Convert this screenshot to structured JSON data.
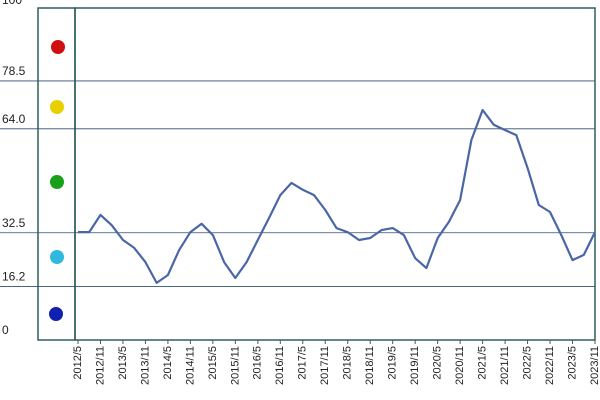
{
  "chart_data": {
    "type": "line",
    "categories": [
      "2012/5",
      null,
      "2012/11",
      null,
      "2013/5",
      null,
      "2013/11",
      null,
      "2014/5",
      null,
      "2014/11",
      null,
      "2015/5",
      null,
      "2015/11",
      null,
      "2016/5",
      null,
      "2016/11",
      null,
      "2017/5",
      null,
      "2017/11",
      null,
      "2018/5",
      null,
      "2018/11",
      null,
      "2019/5",
      null,
      "2019/11",
      null,
      "2020/5",
      null,
      "2020/11",
      null,
      "2021/5",
      null,
      "2021/11",
      null,
      "2022/5",
      null,
      "2022/11",
      null,
      "2023/5",
      null,
      "2023/11"
    ],
    "series": [
      {
        "color": "#4a66a6",
        "values": [
          32.7,
          32.7,
          37.9,
          34.8,
          30.3,
          27.9,
          23.6,
          17.3,
          19.7,
          27.3,
          32.7,
          35.2,
          31.8,
          23.6,
          18.8,
          23.6,
          30.3,
          37,
          43.9,
          47.6,
          45.5,
          43.9,
          39.4,
          33.9,
          32.7,
          30.3,
          30.9,
          33.3,
          33.9,
          31.8,
          24.8,
          21.8,
          30.9,
          35.8,
          42.4,
          60.6,
          69.7,
          65.2,
          63.6,
          62.1,
          52.1,
          40.9,
          38.8,
          31.8,
          24.2,
          25.8,
          32.7
        ]
      }
    ],
    "ylim": [
      0,
      100
    ],
    "yticks": [
      0,
      16.2,
      32.5,
      {
        "value": 64,
        "label": "64.0"
      },
      78.5,
      100
    ],
    "grid": true
  }
}
